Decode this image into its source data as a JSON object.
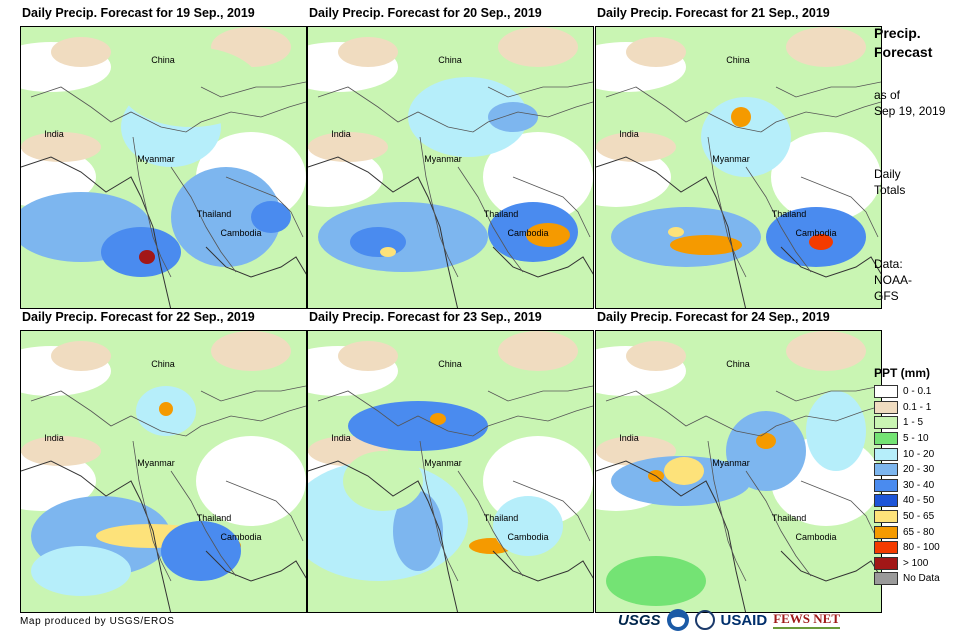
{
  "panels": [
    {
      "title": "Daily Precip. Forecast for 19 Sep., 2019",
      "labels": {
        "china": "China",
        "india": "India",
        "myanmar": "Myanmar",
        "thailand": "Thailand",
        "cambodia": "Cambodia"
      }
    },
    {
      "title": "Daily Precip. Forecast for 20 Sep., 2019",
      "labels": {
        "china": "China",
        "india": "India",
        "myanmar": "Myanmar",
        "thailand": "Thailand",
        "cambodia": "Cambodia"
      }
    },
    {
      "title": "Daily Precip. Forecast for 21 Sep., 2019",
      "labels": {
        "china": "China",
        "india": "India",
        "myanmar": "Myanmar",
        "thailand": "Thailand",
        "cambodia": "Cambodia"
      }
    },
    {
      "title": "Daily Precip. Forecast for 22 Sep., 2019",
      "labels": {
        "china": "China",
        "india": "India",
        "myanmar": "Myanmar",
        "thailand": "Thailand",
        "cambodia": "Cambodia"
      }
    },
    {
      "title": "Daily Precip. Forecast for 23 Sep., 2019",
      "labels": {
        "china": "China",
        "india": "India",
        "myanmar": "Myanmar",
        "thailand": "Thailand",
        "cambodia": "Cambodia"
      }
    },
    {
      "title": "Daily Precip. Forecast for 24 Sep., 2019",
      "labels": {
        "china": "China",
        "india": "India",
        "myanmar": "Myanmar",
        "thailand": "Thailand",
        "cambodia": "Cambodia"
      }
    }
  ],
  "side": {
    "title_line1": "Precip.",
    "title_line2": "Forecast",
    "asof_line1": "as of",
    "asof_line2": "Sep 19, 2019",
    "totals_line1": "Daily",
    "totals_line2": "Totals",
    "data_line1": "Data:",
    "data_line2": "NOAA-",
    "data_line3": "GFS"
  },
  "legend": {
    "title": "PPT (mm)",
    "items": [
      {
        "label": "0 - 0.1",
        "color": "#ffffff"
      },
      {
        "label": "0.1 - 1",
        "color": "#f0dcc0"
      },
      {
        "label": "1 - 5",
        "color": "#c9f5b3"
      },
      {
        "label": "5 - 10",
        "color": "#74e374"
      },
      {
        "label": "10 - 20",
        "color": "#b6eefa"
      },
      {
        "label": "20 - 30",
        "color": "#7db6ef"
      },
      {
        "label": "30 - 40",
        "color": "#4a8bef"
      },
      {
        "label": "40 - 50",
        "color": "#1d55d8"
      },
      {
        "label": "50 - 65",
        "color": "#fde27a"
      },
      {
        "label": "65 - 80",
        "color": "#f59a00"
      },
      {
        "label": "80 - 100",
        "color": "#f43b00"
      },
      {
        "label": "> 100",
        "color": "#a21717"
      },
      {
        "label": "No Data",
        "color": "#9a9a9a"
      }
    ]
  },
  "credit": "Map produced by USGS/EROS",
  "logos": {
    "usgs": "USGS",
    "usaid": "USAID",
    "fews": "FEWS NET"
  }
}
